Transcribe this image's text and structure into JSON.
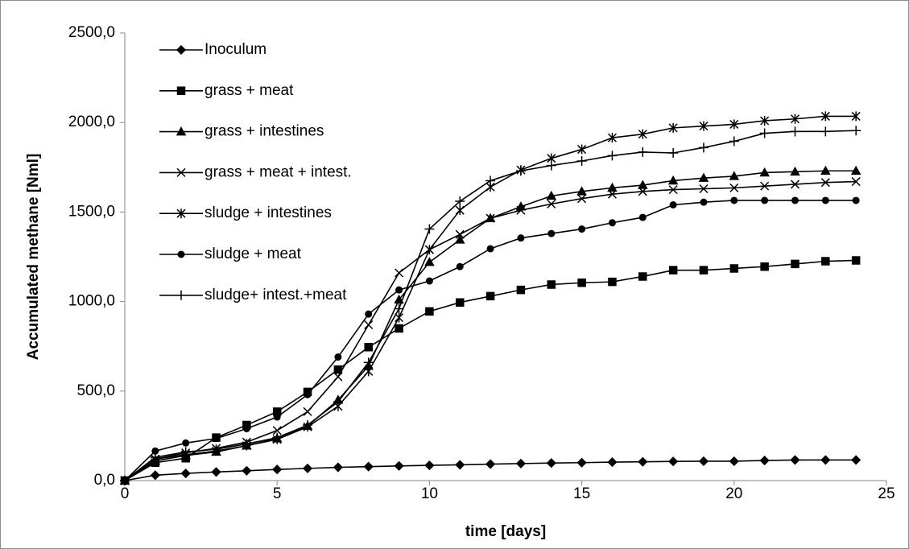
{
  "chart_data": {
    "type": "line",
    "x_label": "time [days]",
    "y_label": "Accumulated methane [Nml]",
    "x": [
      0,
      1,
      2,
      3,
      4,
      5,
      6,
      7,
      8,
      9,
      10,
      11,
      12,
      13,
      14,
      15,
      16,
      17,
      18,
      19,
      20,
      21,
      22,
      23,
      24
    ],
    "xlim": [
      0,
      25
    ],
    "xticks": [
      0,
      5,
      10,
      15,
      20,
      25
    ],
    "ylim": [
      0,
      2500
    ],
    "yticks": [
      {
        "value": 0,
        "label": "0,0"
      },
      {
        "value": 500,
        "label": "500,0"
      },
      {
        "value": 1000,
        "label": "1000,0"
      },
      {
        "value": 1500,
        "label": "1500,0"
      },
      {
        "value": 2000,
        "label": "2000,0"
      },
      {
        "value": 2500,
        "label": "2500,0"
      }
    ],
    "grid": false,
    "legend": "upper left",
    "series": [
      {
        "name": "Inoculum",
        "color": "#000000",
        "marker": "diamond",
        "values": [
          0,
          30,
          40,
          48,
          55,
          62,
          68,
          74,
          78,
          82,
          85,
          88,
          92,
          95,
          98,
          100,
          103,
          105,
          107,
          108,
          108,
          112,
          115,
          115,
          115
        ]
      },
      {
        "name": "grass + meat",
        "color": "#000000",
        "marker": "square",
        "values": [
          0,
          100,
          125,
          240,
          310,
          385,
          495,
          620,
          745,
          850,
          945,
          995,
          1030,
          1065,
          1095,
          1105,
          1110,
          1140,
          1175,
          1175,
          1185,
          1195,
          1210,
          1225,
          1230
        ]
      },
      {
        "name": "grass + intestines",
        "color": "#000000",
        "marker": "triangle",
        "values": [
          0,
          110,
          140,
          160,
          195,
          235,
          305,
          450,
          640,
          1010,
          1220,
          1345,
          1465,
          1530,
          1590,
          1615,
          1635,
          1650,
          1675,
          1690,
          1700,
          1720,
          1725,
          1730,
          1730
        ]
      },
      {
        "name": "grass + meat + intest.",
        "color": "#000000",
        "marker": "x",
        "values": [
          0,
          120,
          155,
          180,
          215,
          280,
          385,
          580,
          870,
          1160,
          1290,
          1375,
          1465,
          1510,
          1545,
          1575,
          1600,
          1615,
          1625,
          1630,
          1635,
          1645,
          1655,
          1665,
          1670
        ]
      },
      {
        "name": "sludge + intestines",
        "color": "#000000",
        "marker": "star",
        "values": [
          0,
          120,
          145,
          165,
          195,
          230,
          300,
          415,
          610,
          910,
          1290,
          1510,
          1640,
          1735,
          1800,
          1850,
          1915,
          1935,
          1970,
          1980,
          1990,
          2010,
          2020,
          2035,
          2035
        ]
      },
      {
        "name": "sludge + meat",
        "color": "#000000",
        "marker": "circle",
        "values": [
          0,
          165,
          210,
          235,
          290,
          355,
          480,
          690,
          930,
          1065,
          1115,
          1195,
          1295,
          1355,
          1380,
          1405,
          1440,
          1470,
          1540,
          1555,
          1565,
          1565,
          1565,
          1565,
          1565
        ]
      },
      {
        "name": "sludge+ intest.+meat",
        "color": "#000000",
        "marker": "plus",
        "values": [
          0,
          130,
          160,
          175,
          205,
          240,
          310,
          440,
          660,
          960,
          1405,
          1560,
          1675,
          1730,
          1760,
          1785,
          1815,
          1835,
          1830,
          1860,
          1895,
          1940,
          1950,
          1950,
          1955
        ]
      }
    ]
  }
}
